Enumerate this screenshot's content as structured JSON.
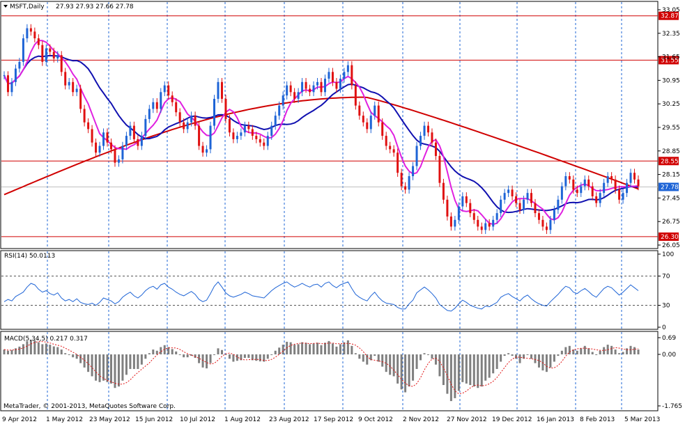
{
  "header": {
    "symbol": "MSFT,Daily",
    "ohlc": "27.93 27.93 27.66 27.78"
  },
  "footer": {
    "copyright": "MetaTrader, © 2001-2013, MetaQuotes Software Corp."
  },
  "colors": {
    "bull": "#1e64d6",
    "bear": "#e01010",
    "ma_fast": "#e020e0",
    "ma_mid": "#1010b0",
    "ma_slow": "#d00000",
    "hline": "#d00000",
    "grid": "#1e64d6",
    "rsi": "#1e64d6",
    "macd_hist": "#7f7f7f",
    "macd_signal": "#e01010",
    "current_price": "#c0c0c0"
  },
  "chart_data": {
    "type": "candlestick",
    "symbol": "MSFT",
    "timeframe": "Daily",
    "date_labels": [
      "9 Apr 2012",
      "1 May 2012",
      "23 May 2012",
      "15 Jun 2012",
      "10 Jul 2012",
      "1 Aug 2012",
      "23 Aug 2012",
      "17 Sep 2012",
      "9 Oct 2012",
      "2 Nov 2012",
      "27 Nov 2012",
      "19 Dec 2012",
      "16 Jan 2013",
      "8 Feb 2013",
      "5 Mar 2013"
    ],
    "price_axis": {
      "min": 26.05,
      "max": 33.05,
      "ticks": [
        "33.05",
        "32.35",
        "31.65",
        "30.95",
        "30.25",
        "29.55",
        "28.85",
        "28.15",
        "27.45",
        "26.75",
        "26.05"
      ]
    },
    "horizontal_levels": [
      "32.87",
      "31.55",
      "28.55",
      "26.30"
    ],
    "current_price": "27.78",
    "closes": [
      31.1,
      30.6,
      30.9,
      31.3,
      31.5,
      32.2,
      32.5,
      32.4,
      32.2,
      32.0,
      31.5,
      31.9,
      31.8,
      31.6,
      31.7,
      31.2,
      30.8,
      30.9,
      30.6,
      30.7,
      30.1,
      29.7,
      29.5,
      29.1,
      28.8,
      29.0,
      29.4,
      29.1,
      28.9,
      28.5,
      28.6,
      29.0,
      29.3,
      29.6,
      29.2,
      29.0,
      29.3,
      29.8,
      30.1,
      30.3,
      30.1,
      30.6,
      30.8,
      30.5,
      30.3,
      30.0,
      29.7,
      29.5,
      29.7,
      29.9,
      29.6,
      29.0,
      28.8,
      28.9,
      29.6,
      30.4,
      30.9,
      30.4,
      29.8,
      29.4,
      29.2,
      29.3,
      29.4,
      29.6,
      29.5,
      29.3,
      29.2,
      29.1,
      29.0,
      29.3,
      29.6,
      29.9,
      30.2,
      30.5,
      30.8,
      30.6,
      30.4,
      30.6,
      30.9,
      30.7,
      30.6,
      30.8,
      30.9,
      30.6,
      31.0,
      31.2,
      30.9,
      30.7,
      31.0,
      31.2,
      31.4,
      30.8,
      30.2,
      29.9,
      29.7,
      29.5,
      29.9,
      30.2,
      29.7,
      29.3,
      29.0,
      28.9,
      28.8,
      28.2,
      27.8,
      27.7,
      28.1,
      28.4,
      29.0,
      29.3,
      29.6,
      29.4,
      29.1,
      28.7,
      27.9,
      27.4,
      26.9,
      26.6,
      26.8,
      27.2,
      27.5,
      27.3,
      27.0,
      26.8,
      26.6,
      26.5,
      26.7,
      26.6,
      26.8,
      27.0,
      27.4,
      27.6,
      27.7,
      27.5,
      27.3,
      27.1,
      27.4,
      27.6,
      27.3,
      27.0,
      26.8,
      26.6,
      26.5,
      26.8,
      27.1,
      27.4,
      27.8,
      28.1,
      28.0,
      27.7,
      27.6,
      27.8,
      28.0,
      27.8,
      27.5,
      27.3,
      27.6,
      27.9,
      28.1,
      28.0,
      27.7,
      27.4,
      27.6,
      27.9,
      28.2,
      28.0,
      27.8
    ],
    "rsi": {
      "label": "RSI(14) 50.0113",
      "period": 14,
      "value": "50.0113",
      "ticks": [
        "100",
        "70",
        "30",
        "0"
      ],
      "levels": [
        70,
        30
      ],
      "values": [
        35,
        38,
        36,
        42,
        45,
        48,
        55,
        60,
        58,
        52,
        48,
        50,
        46,
        44,
        47,
        40,
        36,
        38,
        35,
        39,
        34,
        32,
        31,
        33,
        30,
        34,
        40,
        38,
        36,
        32,
        35,
        41,
        45,
        48,
        43,
        40,
        44,
        50,
        54,
        56,
        52,
        58,
        60,
        55,
        52,
        48,
        45,
        43,
        46,
        49,
        45,
        38,
        35,
        37,
        46,
        56,
        62,
        55,
        47,
        43,
        41,
        43,
        45,
        48,
        46,
        43,
        42,
        41,
        40,
        45,
        50,
        54,
        57,
        60,
        62,
        58,
        55,
        57,
        60,
        57,
        55,
        58,
        59,
        55,
        60,
        62,
        57,
        54,
        58,
        60,
        62,
        53,
        45,
        41,
        38,
        36,
        43,
        48,
        41,
        36,
        33,
        32,
        31,
        27,
        25,
        25,
        32,
        37,
        47,
        51,
        55,
        51,
        46,
        40,
        31,
        27,
        23,
        22,
        26,
        32,
        37,
        34,
        30,
        28,
        26,
        25,
        29,
        28,
        31,
        34,
        41,
        44,
        46,
        42,
        39,
        36,
        41,
        44,
        39,
        35,
        32,
        30,
        29,
        35,
        40,
        45,
        51,
        56,
        54,
        48,
        46,
        50,
        53,
        49,
        44,
        41,
        47,
        53,
        56,
        54,
        49,
        44,
        48,
        53,
        58,
        54,
        50
      ]
    },
    "macd": {
      "label": "MACD(5,34,5) 0.217 0.317",
      "params": "5,34,5",
      "main": "0.217",
      "signal": "0.317",
      "ticks": [
        "0.69",
        "0.00",
        "-1.765"
      ],
      "hist": [
        0.2,
        0.15,
        0.18,
        0.25,
        0.32,
        0.42,
        0.55,
        0.6,
        0.58,
        0.5,
        0.42,
        0.45,
        0.4,
        0.33,
        0.3,
        0.2,
        0.05,
        0.0,
        -0.1,
        -0.15,
        -0.3,
        -0.45,
        -0.6,
        -0.75,
        -0.9,
        -0.95,
        -0.9,
        -0.95,
        -1.0,
        -1.15,
        -1.1,
        -0.9,
        -0.7,
        -0.5,
        -0.5,
        -0.5,
        -0.35,
        -0.15,
        0.05,
        0.2,
        0.15,
        0.3,
        0.38,
        0.3,
        0.22,
        0.12,
        0.0,
        -0.1,
        -0.1,
        -0.05,
        -0.12,
        -0.3,
        -0.45,
        -0.48,
        -0.3,
        0.0,
        0.25,
        0.18,
        0.0,
        -0.15,
        -0.25,
        -0.22,
        -0.2,
        -0.12,
        -0.12,
        -0.2,
        -0.22,
        -0.24,
        -0.25,
        -0.15,
        0.0,
        0.15,
        0.28,
        0.4,
        0.52,
        0.5,
        0.4,
        0.42,
        0.5,
        0.48,
        0.42,
        0.45,
        0.48,
        0.38,
        0.48,
        0.55,
        0.45,
        0.32,
        0.42,
        0.5,
        0.58,
        0.35,
        0.05,
        -0.15,
        -0.25,
        -0.35,
        -0.2,
        -0.05,
        -0.25,
        -0.42,
        -0.6,
        -0.7,
        -0.75,
        -1.0,
        -1.2,
        -1.3,
        -1.1,
        -0.9,
        -0.5,
        -0.2,
        0.05,
        0.0,
        -0.15,
        -0.35,
        -0.75,
        -1.05,
        -1.35,
        -1.6,
        -1.5,
        -1.25,
        -0.95,
        -1.0,
        -1.05,
        -1.1,
        -1.15,
        -1.1,
        -0.9,
        -0.8,
        -0.65,
        -0.5,
        -0.25,
        -0.05,
        0.05,
        -0.05,
        -0.15,
        -0.3,
        -0.15,
        0.0,
        -0.15,
        -0.3,
        -0.45,
        -0.55,
        -0.6,
        -0.45,
        -0.25,
        -0.05,
        0.15,
        0.3,
        0.35,
        0.2,
        0.15,
        0.25,
        0.35,
        0.25,
        0.1,
        0.0,
        0.15,
        0.3,
        0.4,
        0.35,
        0.2,
        0.05,
        0.1,
        0.25,
        0.35,
        0.3,
        0.2
      ]
    }
  }
}
